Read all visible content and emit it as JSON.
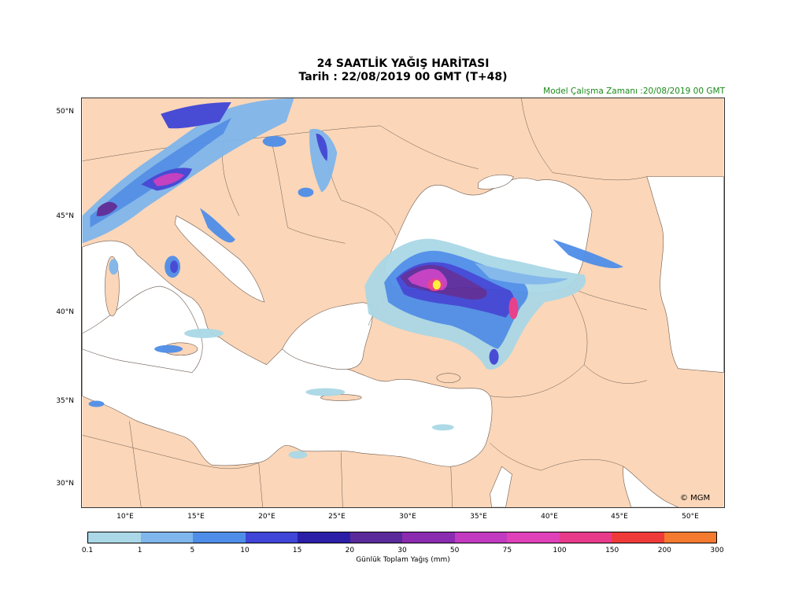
{
  "title": "24 SAATLİK YAĞIŞ HARİTASI",
  "subtitle": "Tarih : 22/08/2019  00 GMT (T+48)",
  "model_run": "Model Çalışma Zamanı :20/08/2019  00 GMT",
  "copyright": "© MGM",
  "lat_labels": [
    "50°N",
    "45°N",
    "40°N",
    "35°N",
    "30°N"
  ],
  "lon_labels": [
    "10°E",
    "15°E",
    "20°E",
    "25°E",
    "30°E",
    "35°E",
    "40°E",
    "45°E",
    "50°E"
  ],
  "colorbar": {
    "label": "Günlük Toplam Yağış (mm)",
    "ticks": [
      "0.1",
      "1",
      "5",
      "10",
      "15",
      "20",
      "30",
      "50",
      "75",
      "100",
      "150",
      "200",
      "300"
    ],
    "colors": [
      "#aad8e6",
      "#7fb6ec",
      "#4f8ee8",
      "#3f45d6",
      "#2b1fa8",
      "#5a2a9a",
      "#8a2bb0",
      "#c23ac0",
      "#e040b8",
      "#e83a8a",
      "#ef3a3a",
      "#f47a30",
      "#fff030"
    ]
  },
  "map_colors": {
    "land": "#fbd6b8",
    "sea": "#ffffff",
    "border": "#6b5a50"
  }
}
